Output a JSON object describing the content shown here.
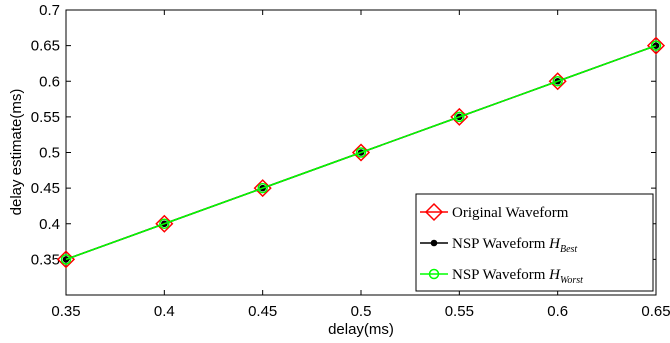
{
  "chart_data": {
    "type": "line",
    "title": "",
    "xlabel": "delay(ms)",
    "ylabel": "delay estimate(ms)",
    "xlim": [
      0.35,
      0.65
    ],
    "ylim": [
      0.3,
      0.7
    ],
    "xticks": [
      "0.35",
      "0.4",
      "0.45",
      "0.5",
      "0.55",
      "0.6",
      "0.65"
    ],
    "yticks": [
      "0.35",
      "0.4",
      "0.45",
      "0.5",
      "0.55",
      "0.6",
      "0.65",
      "0.7"
    ],
    "grid": false,
    "legend_position": "bottom-right",
    "x": [
      0.35,
      0.4,
      0.45,
      0.5,
      0.55,
      0.6,
      0.65
    ],
    "series": [
      {
        "name": "Original Waveform",
        "values": [
          0.35,
          0.4,
          0.45,
          0.5,
          0.55,
          0.6,
          0.65
        ],
        "color": "#ff0000",
        "marker": "diamond"
      },
      {
        "name": "NSP Waveform H_Best",
        "name_main": "NSP Waveform ",
        "name_math": "H",
        "name_sub": "Best",
        "values": [
          0.35,
          0.4,
          0.45,
          0.5,
          0.55,
          0.6,
          0.65
        ],
        "color": "#000000",
        "marker": "dot"
      },
      {
        "name": "NSP Waveform H_Worst",
        "name_main": "NSP Waveform ",
        "name_math": "H",
        "name_sub": "Worst",
        "values": [
          0.35,
          0.4,
          0.45,
          0.5,
          0.55,
          0.6,
          0.65
        ],
        "color": "#00ff00",
        "marker": "circle"
      }
    ]
  }
}
